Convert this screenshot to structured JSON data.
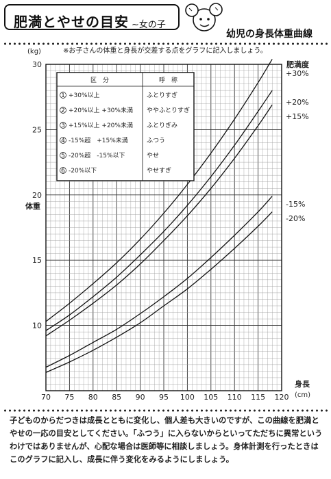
{
  "header": {
    "title": "肥満とやせの目安",
    "subtitle": "~女の子",
    "chart_title": "幼児の身長体重曲線"
  },
  "footer": {
    "text": "子どものからだつきは成長とともに変化し、個人差も大きいのですが、この曲線を肥満とやせの一応の目安としてください。「ふつう」に入らないからといってただちに異常というわけではありませんが、心配な場合は医師等に相談しましょう。身体計測を行ったときはこのグラフに記入し、成長に伴う変化をみるようにしましょう。"
  },
  "chart_data": {
    "type": "line",
    "note": "※お子さんの体重と身長が交差する点をグラフに記入しましょう。",
    "xlabel": "身長",
    "xunit": "(cm)",
    "ylabel": "体重",
    "yunit": "(kg)",
    "xlim": [
      70,
      120
    ],
    "ylim": [
      5,
      30
    ],
    "xticks": [
      70,
      75,
      80,
      85,
      90,
      95,
      100,
      105,
      110,
      115,
      120
    ],
    "yticks": [
      10,
      15,
      20,
      25,
      30
    ],
    "grid": true,
    "x": [
      70,
      75,
      80,
      85,
      90,
      95,
      100,
      105,
      110,
      115,
      118
    ],
    "series_header": "肥満度",
    "series": [
      {
        "name": "+30%",
        "values": [
          10.3,
          11.7,
          13.2,
          14.8,
          16.6,
          18.6,
          20.8,
          23.2,
          25.8,
          28.6,
          30.4
        ]
      },
      {
        "name": "+20%",
        "values": [
          9.6,
          10.8,
          12.2,
          13.7,
          15.4,
          17.2,
          19.2,
          21.4,
          23.8,
          26.4,
          28.0
        ]
      },
      {
        "name": "+15%",
        "values": [
          9.2,
          10.4,
          11.7,
          13.1,
          14.7,
          16.5,
          18.4,
          20.5,
          22.8,
          25.3,
          26.9
        ]
      },
      {
        "name": "-15%",
        "values": [
          6.8,
          7.7,
          8.7,
          9.7,
          10.9,
          12.2,
          13.6,
          15.2,
          16.9,
          18.7,
          19.9
        ]
      },
      {
        "name": "-20%",
        "values": [
          6.4,
          7.2,
          8.1,
          9.1,
          10.2,
          11.5,
          12.8,
          14.3,
          15.9,
          17.6,
          18.7
        ]
      }
    ],
    "legend": {
      "placement": "top-left",
      "headers": [
        "区　分",
        "呼　称"
      ],
      "rows": [
        {
          "range": "+30%以上",
          "name": "ふとりすぎ"
        },
        {
          "range": "+20%以上 +30%未満",
          "name": "ややふとりすぎ"
        },
        {
          "range": "+15%以上 +20%未満",
          "name": "ふとりぎみ"
        },
        {
          "range": "-15%超　+15%未満",
          "name": "ふつう"
        },
        {
          "range": "-20%超　-15%以下",
          "name": "やせ"
        },
        {
          "range": "-20%以下",
          "name": "やせすぎ"
        }
      ]
    }
  }
}
